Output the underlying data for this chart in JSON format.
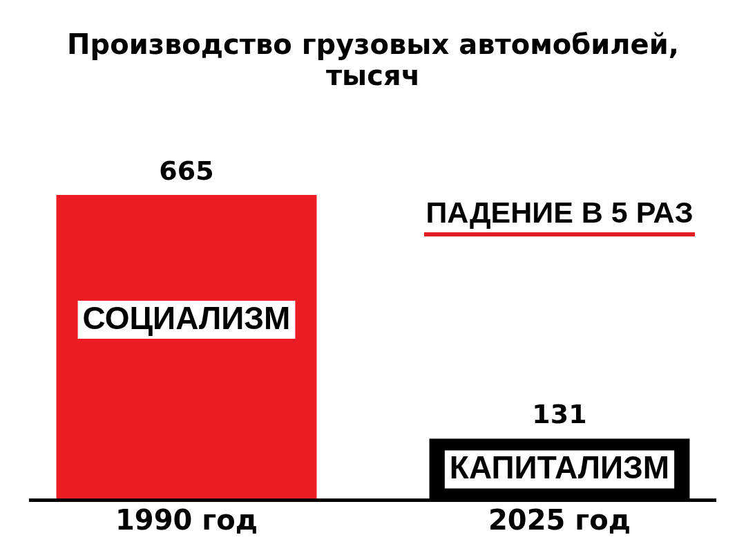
{
  "chart_data": {
    "type": "bar",
    "title": "Производство грузовых автомобилей,\nтысяч",
    "categories": [
      "1990 год",
      "2025 год"
    ],
    "values": [
      665,
      131
    ],
    "colors": [
      "#ed1c24",
      "#000000"
    ],
    "data_labels": true,
    "annotations": [
      "СОЦИАЛИЗМ",
      "КАПИТАЛИЗМ",
      "ПАДЕНИЕ В 5 РАЗ"
    ]
  }
}
